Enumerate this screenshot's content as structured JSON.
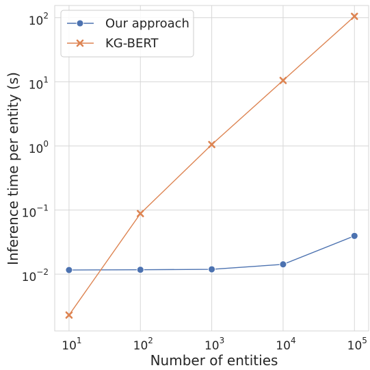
{
  "chart_data": {
    "type": "line",
    "title": "",
    "xlabel": "Number of entities",
    "ylabel": "Inference time per entity (s)",
    "x_scale": "log",
    "y_scale": "log",
    "x": [
      10,
      100,
      1000,
      10000,
      100000
    ],
    "xlim": [
      6.3,
      158000
    ],
    "ylim": [
      0.0013,
      155
    ],
    "x_ticks": [
      {
        "base": "10",
        "exp": "1",
        "value": 10
      },
      {
        "base": "10",
        "exp": "2",
        "value": 100
      },
      {
        "base": "10",
        "exp": "3",
        "value": 1000
      },
      {
        "base": "10",
        "exp": "4",
        "value": 10000
      },
      {
        "base": "10",
        "exp": "5",
        "value": 100000
      }
    ],
    "y_ticks": [
      {
        "base": "10",
        "exp": "−2",
        "value": 0.01
      },
      {
        "base": "10",
        "exp": "−1",
        "value": 0.1
      },
      {
        "base": "10",
        "exp": "0",
        "value": 1
      },
      {
        "base": "10",
        "exp": "1",
        "value": 10
      },
      {
        "base": "10",
        "exp": "2",
        "value": 100
      }
    ],
    "grid": true,
    "legend_position": "top-left",
    "series": [
      {
        "name": "Our approach",
        "marker": "circle",
        "color": "#4c72b0",
        "values": [
          0.0116,
          0.0117,
          0.0119,
          0.0142,
          0.0395
        ]
      },
      {
        "name": "KG-BERT",
        "marker": "x",
        "color": "#dd8452",
        "values": [
          0.0023,
          0.088,
          1.05,
          10.5,
          105
        ]
      }
    ]
  }
}
